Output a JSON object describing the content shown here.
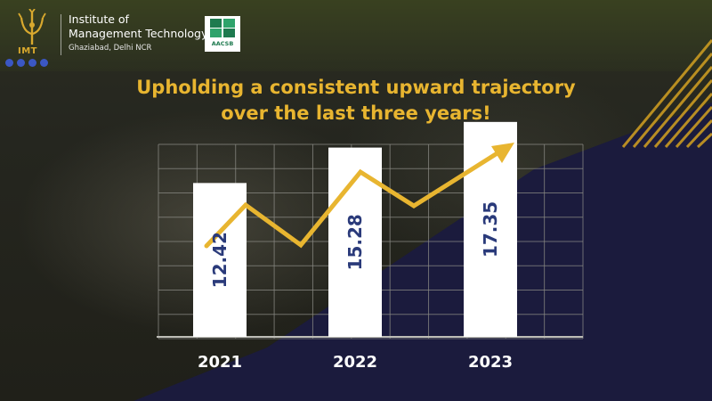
{
  "header": {
    "institute_name_line1": "Institute of",
    "institute_name_line2": "Management Technology",
    "location": "Ghaziabad, Delhi NCR",
    "emblem_text": "IMT",
    "accreditation_badge_text": "AACSB",
    "accent_color": "#d9a92e",
    "dot_color": "#3b57c4"
  },
  "headline": {
    "line1": "Upholding a consistent upward trajectory",
    "line2": "over the last three years!"
  },
  "colors": {
    "gold": "#e8b530",
    "navy": "#2a3a7a",
    "bar_fill": "#ffffff",
    "grid": "#8a8a84",
    "purple_panel": "#1b1b3d"
  },
  "chart_data": {
    "type": "bar",
    "categories": [
      "2021",
      "2022",
      "2023"
    ],
    "values": [
      12.42,
      15.28,
      17.35
    ],
    "data_labels": [
      "12.42",
      "15.28",
      "17.35"
    ],
    "ylim": [
      0,
      20
    ],
    "grid": true,
    "trend_arrow": "upward zigzag line with arrowhead",
    "title": "",
    "xlabel": "",
    "ylabel": ""
  }
}
